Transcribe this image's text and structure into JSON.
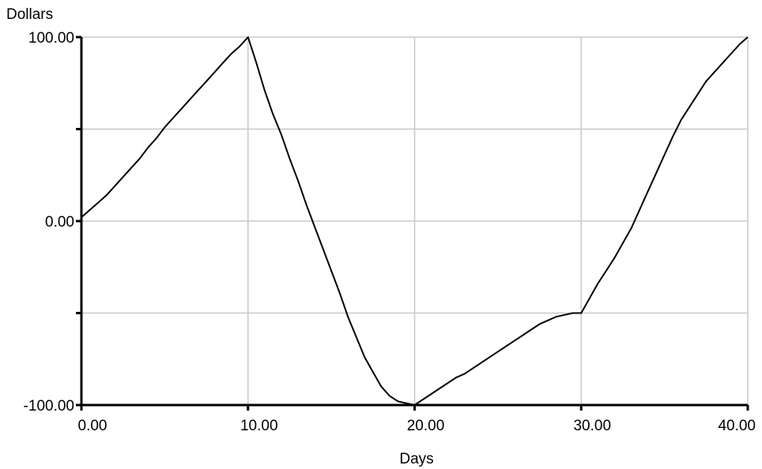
{
  "chart_data": {
    "type": "line",
    "title": "",
    "xlabel": "Days",
    "ylabel": "Dollars",
    "xlim": [
      0,
      40
    ],
    "ylim": [
      -100,
      100
    ],
    "grid": true,
    "x_ticks": [
      0,
      10,
      20,
      30,
      40
    ],
    "x_tick_labels": [
      "0.00",
      "10.00",
      "20.00",
      "30.00",
      "40.00"
    ],
    "y_ticks": [
      -100,
      -50,
      0,
      50,
      100
    ],
    "y_tick_labels": [
      "-100.00",
      "",
      "0.00",
      "",
      "100.00"
    ],
    "colors": {
      "line": "#000000",
      "grid": "#c8c8c8",
      "axis": "#000000"
    },
    "series": [
      {
        "x": [
          0,
          0.5,
          1,
          1.5,
          2,
          2.5,
          3,
          3.5,
          4,
          4.5,
          5,
          5.5,
          6,
          6.5,
          7,
          7.5,
          8,
          8.5,
          9,
          9.5,
          10,
          10.5,
          11,
          11.5,
          12,
          12.5,
          13,
          13.5,
          14,
          14.5,
          15,
          15.5,
          16,
          16.5,
          17,
          17.5,
          18,
          18.5,
          19,
          19.5,
          20,
          20.5,
          21,
          21.5,
          22,
          22.5,
          23,
          23.5,
          24,
          24.5,
          25,
          25.5,
          26,
          26.5,
          27,
          27.5,
          28,
          28.5,
          29,
          29.5,
          30,
          30.5,
          31,
          31.5,
          32,
          32.5,
          33,
          33.5,
          34,
          34.5,
          35,
          35.5,
          36,
          36.5,
          37,
          37.5,
          38,
          38.5,
          39,
          39.5,
          40
        ],
        "y": [
          2,
          6,
          10,
          14,
          19,
          24,
          29,
          34,
          40,
          45,
          51,
          56,
          61,
          66,
          71,
          76,
          81,
          86,
          91,
          95,
          100,
          86,
          71,
          58,
          47,
          34,
          22,
          9,
          -3,
          -15,
          -27,
          -39,
          -52,
          -63,
          -74,
          -82,
          -90,
          -95,
          -98,
          -99,
          -100,
          -97,
          -94,
          -91,
          -88,
          -85,
          -83,
          -80,
          -77,
          -74,
          -71,
          -68,
          -65,
          -62,
          -59,
          -56,
          -54,
          -52,
          -51,
          -50,
          -50,
          -42,
          -34,
          -27,
          -20,
          -12,
          -4,
          6,
          16,
          26,
          36,
          46,
          55,
          62,
          69,
          76,
          81,
          86,
          91,
          96,
          100
        ]
      }
    ]
  }
}
